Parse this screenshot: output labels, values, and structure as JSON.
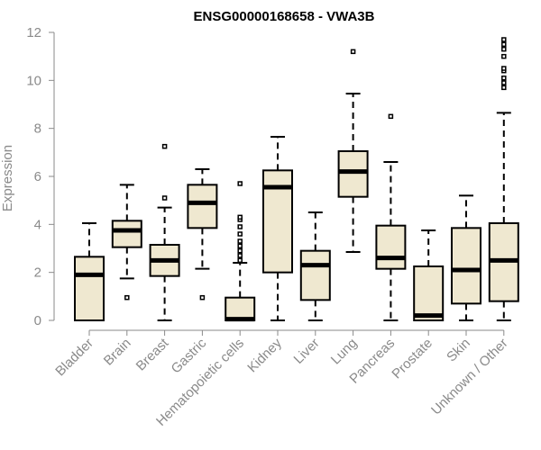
{
  "chart_data": {
    "type": "box",
    "title": "ENSG00000168658 - VWA3B",
    "xlabel": "",
    "ylabel": "Expression",
    "ylim": [
      0,
      12
    ],
    "yticks": [
      0,
      2,
      4,
      6,
      8,
      10,
      12
    ],
    "grid": false,
    "colors": {
      "box_fill": "#efe8d0",
      "box_stroke": "#000000",
      "median": "#000000",
      "axis": "#8a8a8a"
    },
    "categories": [
      "Bladder",
      "Brain",
      "Breast",
      "Gastric",
      "Hematopoietic cells",
      "Kidney",
      "Liver",
      "Lung",
      "Pancreas",
      "Prostate",
      "Skin",
      "Unknown / Other"
    ],
    "boxes": [
      {
        "min": 0,
        "q1": 0,
        "median": 1.9,
        "q3": 2.65,
        "max": 4.05,
        "outliers": []
      },
      {
        "min": 1.75,
        "q1": 3.05,
        "median": 3.75,
        "q3": 4.15,
        "max": 5.65,
        "outliers": [
          0.95
        ]
      },
      {
        "min": 0,
        "q1": 1.85,
        "median": 2.5,
        "q3": 3.15,
        "max": 4.7,
        "outliers": [
          5.1,
          7.25
        ]
      },
      {
        "min": 2.15,
        "q1": 3.85,
        "median": 4.9,
        "q3": 5.65,
        "max": 6.3,
        "outliers": [
          0.95
        ]
      },
      {
        "min": 0,
        "q1": 0,
        "median": 0.05,
        "q3": 0.95,
        "max": 2.4,
        "outliers": [
          2.5,
          2.7,
          2.9,
          3.1,
          3.3,
          3.6,
          3.9,
          4.2,
          4.3,
          5.7
        ]
      },
      {
        "min": 0,
        "q1": 2.0,
        "median": 5.55,
        "q3": 6.25,
        "max": 7.65,
        "outliers": []
      },
      {
        "min": 0,
        "q1": 0.85,
        "median": 2.3,
        "q3": 2.9,
        "max": 4.5,
        "outliers": []
      },
      {
        "min": 2.85,
        "q1": 5.15,
        "median": 6.2,
        "q3": 7.05,
        "max": 9.45,
        "outliers": [
          11.2
        ]
      },
      {
        "min": 0,
        "q1": 2.15,
        "median": 2.6,
        "q3": 3.95,
        "max": 6.6,
        "outliers": [
          8.5
        ]
      },
      {
        "min": 0,
        "q1": 0,
        "median": 0.2,
        "q3": 2.25,
        "max": 3.75,
        "outliers": []
      },
      {
        "min": 0,
        "q1": 0.7,
        "median": 2.1,
        "q3": 3.85,
        "max": 5.2,
        "outliers": []
      },
      {
        "min": 0,
        "q1": 0.8,
        "median": 2.5,
        "q3": 4.05,
        "max": 8.65,
        "outliers": [
          9.7,
          9.9,
          10.1,
          10.4,
          10.5,
          11.0,
          11.3,
          11.5,
          11.7
        ]
      }
    ]
  }
}
